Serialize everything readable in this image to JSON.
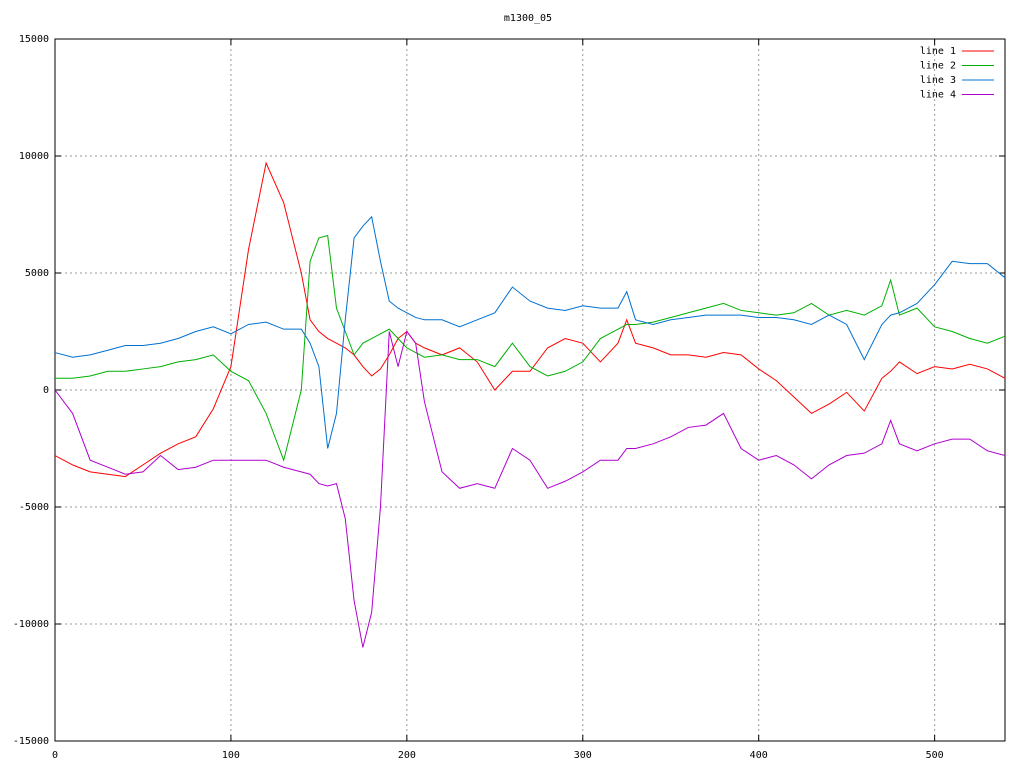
{
  "chart_data": {
    "type": "line",
    "title": "m1300_05",
    "x": [
      0,
      10,
      20,
      30,
      40,
      50,
      60,
      70,
      80,
      90,
      100,
      110,
      120,
      130,
      140,
      145,
      150,
      155,
      160,
      165,
      170,
      175,
      180,
      185,
      190,
      195,
      200,
      205,
      210,
      220,
      230,
      240,
      250,
      260,
      270,
      280,
      290,
      300,
      310,
      320,
      325,
      330,
      340,
      350,
      360,
      370,
      380,
      390,
      400,
      410,
      420,
      430,
      440,
      450,
      460,
      470,
      475,
      480,
      490,
      500,
      510,
      520,
      530,
      540
    ],
    "series": [
      {
        "name": "line 1",
        "color": "#ff0000",
        "values": [
          -2800,
          -3200,
          -3500,
          -3600,
          -3700,
          -3200,
          -2700,
          -2300,
          -2000,
          -800,
          1000,
          6000,
          9700,
          8000,
          5000,
          3000,
          2500,
          2200,
          2000,
          1800,
          1500,
          1000,
          600,
          900,
          1500,
          2200,
          2500,
          2000,
          1800,
          1500,
          1800,
          1200,
          0,
          800,
          800,
          1800,
          2200,
          2000,
          1200,
          2000,
          3000,
          2000,
          1800,
          1500,
          1500,
          1400,
          1600,
          1500,
          900,
          400,
          -300,
          -1000,
          -600,
          -100,
          -900,
          500,
          800,
          1200,
          700,
          1000,
          900,
          1100,
          900,
          500
        ]
      },
      {
        "name": "line 2",
        "color": "#00b000",
        "values": [
          500,
          500,
          600,
          800,
          800,
          900,
          1000,
          1200,
          1300,
          1500,
          800,
          400,
          -1000,
          -3000,
          0,
          5500,
          6500,
          6600,
          3500,
          2500,
          1500,
          2000,
          2200,
          2400,
          2600,
          2200,
          1800,
          1600,
          1400,
          1500,
          1300,
          1300,
          1000,
          2000,
          1000,
          600,
          800,
          1200,
          2200,
          2600,
          2800,
          2800,
          2900,
          3100,
          3300,
          3500,
          3700,
          3400,
          3300,
          3200,
          3300,
          3700,
          3200,
          3400,
          3200,
          3600,
          4700,
          3200,
          3500,
          2700,
          2500,
          2200,
          2000,
          2300
        ]
      },
      {
        "name": "line 3",
        "color": "#0070d0",
        "values": [
          1600,
          1400,
          1500,
          1700,
          1900,
          1900,
          2000,
          2200,
          2500,
          2700,
          2400,
          2800,
          2900,
          2600,
          2600,
          2000,
          1000,
          -2500,
          -1000,
          3000,
          6500,
          7000,
          7400,
          5500,
          3800,
          3500,
          3300,
          3100,
          3000,
          3000,
          2700,
          3000,
          3300,
          4400,
          3800,
          3500,
          3400,
          3600,
          3500,
          3500,
          4200,
          3000,
          2800,
          3000,
          3100,
          3200,
          3200,
          3200,
          3100,
          3100,
          3000,
          2800,
          3200,
          2800,
          1300,
          2800,
          3200,
          3300,
          3700,
          4500,
          5500,
          5400,
          5400,
          4800
        ]
      },
      {
        "name": "line 4",
        "color": "#b000d0",
        "values": [
          0,
          -1000,
          -3000,
          -3300,
          -3600,
          -3500,
          -2800,
          -3400,
          -3300,
          -3000,
          -3000,
          -3000,
          -3000,
          -3300,
          -3500,
          -3600,
          -4000,
          -4100,
          -4000,
          -5500,
          -9000,
          -11000,
          -9500,
          -5000,
          2500,
          1000,
          2500,
          2000,
          -500,
          -3500,
          -4200,
          -4000,
          -4200,
          -2500,
          -3000,
          -4200,
          -3900,
          -3500,
          -3000,
          -3000,
          -2500,
          -2500,
          -2300,
          -2000,
          -1600,
          -1500,
          -1000,
          -2500,
          -3000,
          -2800,
          -3200,
          -3800,
          -3200,
          -2800,
          -2700,
          -2300,
          -1300,
          -2300,
          -2600,
          -2300,
          -2100,
          -2100,
          -2600,
          -2800
        ]
      }
    ],
    "xlim": [
      0,
      540
    ],
    "xticks": [
      0,
      100,
      200,
      300,
      400,
      500
    ],
    "ylim": [
      -15000,
      15000
    ],
    "yticks": [
      -15000,
      -10000,
      -5000,
      0,
      5000,
      10000,
      15000
    ],
    "grid": true,
    "legend": "top-right"
  }
}
